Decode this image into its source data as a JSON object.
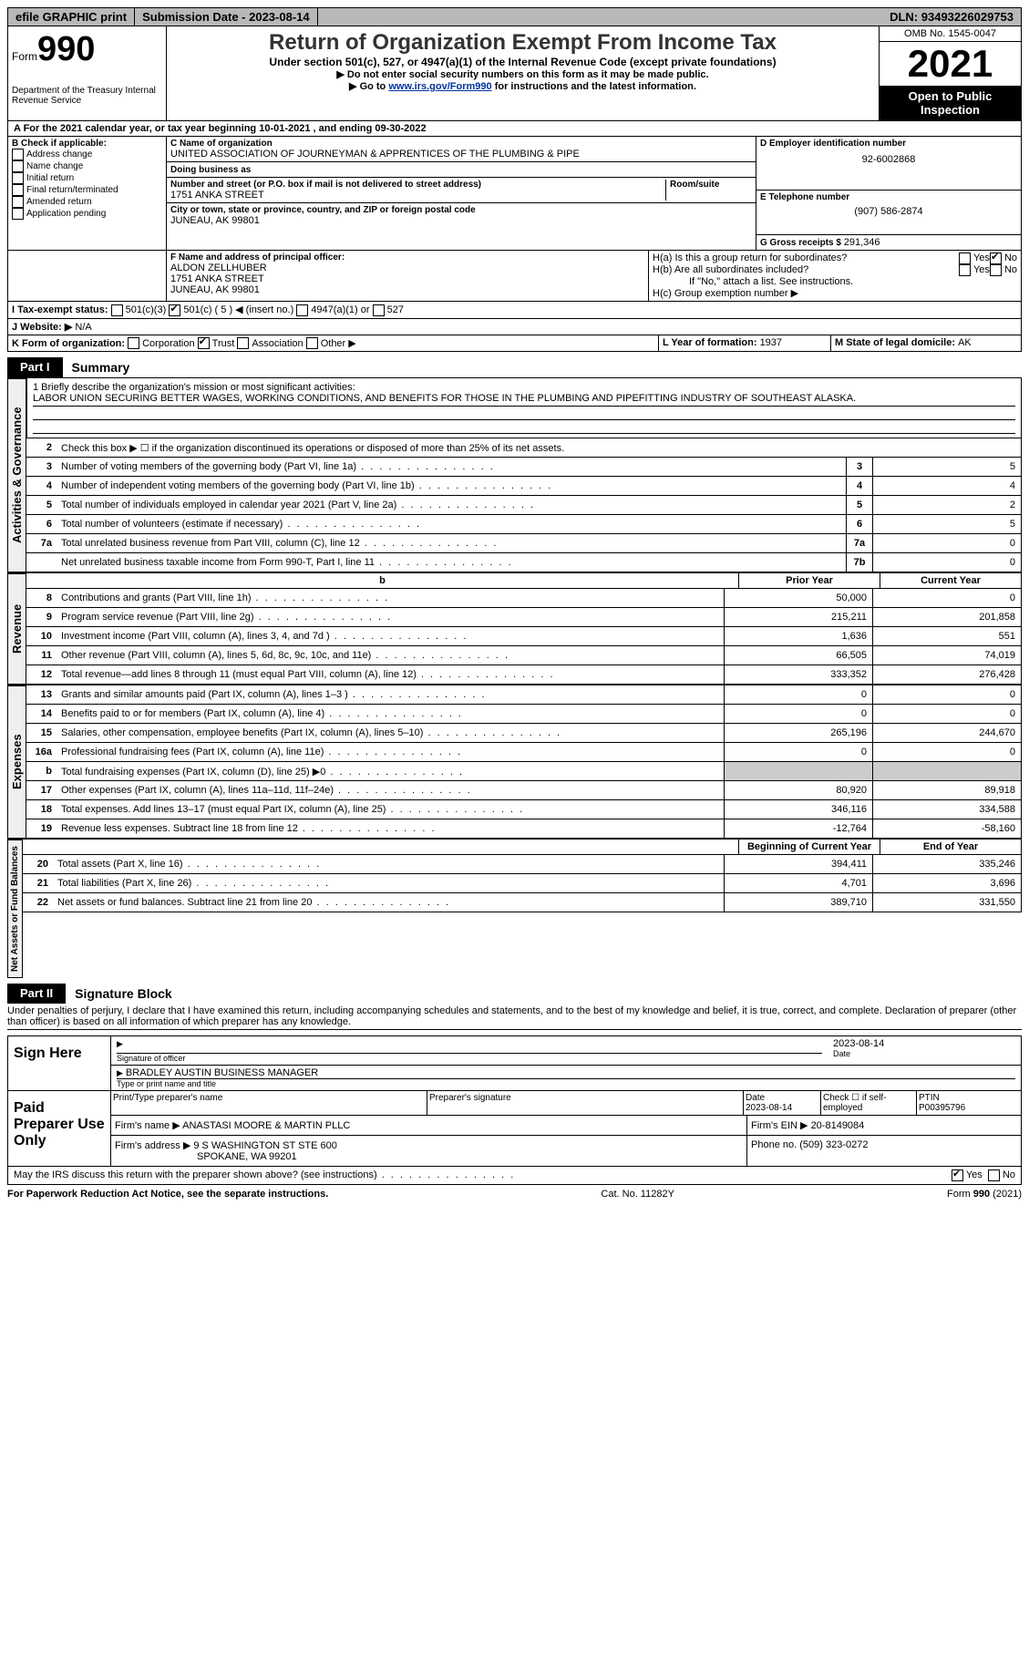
{
  "topbar": {
    "efile": "efile GRAPHIC print",
    "subdate_label": "Submission Date - ",
    "subdate": "2023-08-14",
    "dln_label": "DLN: ",
    "dln": "93493226029753"
  },
  "header": {
    "form_word": "Form",
    "form_num": "990",
    "dept": "Department of the Treasury\nInternal Revenue Service",
    "title": "Return of Organization Exempt From Income Tax",
    "subtitle": "Under section 501(c), 527, or 4947(a)(1) of the Internal Revenue Code (except private foundations)",
    "warn": "▶ Do not enter social security numbers on this form as it may be made public.",
    "goto_pre": "▶ Go to ",
    "goto_link": "www.irs.gov/Form990",
    "goto_post": " for instructions and the latest information.",
    "omb": "OMB No. 1545-0047",
    "year": "2021",
    "inspect": "Open to Public Inspection"
  },
  "period": {
    "text_a": "A For the 2021 calendar year, or tax year beginning ",
    "begin": "10-01-2021",
    "text_b": " , and ending ",
    "end": "09-30-2022"
  },
  "boxB": {
    "title": "B Check if applicable:",
    "opts": [
      "Address change",
      "Name change",
      "Initial return",
      "Final return/terminated",
      "Amended return",
      "Application pending"
    ]
  },
  "boxC": {
    "name_label": "C Name of organization",
    "name": "UNITED ASSOCIATION OF JOURNEYMAN & APPRENTICES OF THE PLUMBING & PIPE",
    "dba": "Doing business as",
    "addr_label": "Number and street (or P.O. box if mail is not delivered to street address)",
    "room": "Room/suite",
    "addr": "1751 ANKA STREET",
    "city_label": "City or town, state or province, country, and ZIP or foreign postal code",
    "city": "JUNEAU, AK  99801"
  },
  "boxD": {
    "label": "D Employer identification number",
    "val": "92-6002868"
  },
  "boxE": {
    "label": "E Telephone number",
    "val": "(907) 586-2874"
  },
  "boxG": {
    "label": "G Gross receipts $ ",
    "val": "291,346"
  },
  "boxF": {
    "label": "F  Name and address of principal officer:",
    "name": "ALDON ZELLHUBER",
    "addr1": "1751 ANKA STREET",
    "addr2": "JUNEAU, AK  99801"
  },
  "boxH": {
    "ha": "H(a)  Is this a group return for subordinates?",
    "hb": "H(b)  Are all subordinates included?",
    "hb_note": "If \"No,\" attach a list. See instructions.",
    "hc": "H(c)  Group exemption number ▶",
    "yes": "Yes",
    "no": "No"
  },
  "taxexempt": {
    "label": "I  Tax-exempt status:",
    "o1": "501(c)(3)",
    "o2": "501(c) ( 5 ) ◀ (insert no.)",
    "o3": "4947(a)(1) or",
    "o4": "527"
  },
  "website": {
    "label": "J  Website: ▶",
    "val": "N/A"
  },
  "boxK": {
    "label": "K Form of organization:",
    "o1": "Corporation",
    "o2": "Trust",
    "o3": "Association",
    "o4": "Other ▶"
  },
  "boxL": {
    "label": "L Year of formation: ",
    "val": "1937"
  },
  "boxM": {
    "label": "M State of legal domicile: ",
    "val": "AK"
  },
  "part1": {
    "tab": "Part I",
    "title": "Summary"
  },
  "summary": {
    "s1_label": "1  Briefly describe the organization's mission or most significant activities:",
    "s1_text": "LABOR UNION SECURING BETTER WAGES, WORKING CONDITIONS, AND BENEFITS FOR THOSE IN THE PLUMBING AND PIPEFITTING INDUSTRY OF SOUTHEAST ALASKA.",
    "s2": "Check this box ▶ ☐  if the organization discontinued its operations or disposed of more than 25% of its net assets.",
    "lines_gov": [
      {
        "n": "3",
        "t": "Number of voting members of the governing body (Part VI, line 1a)",
        "box": "3",
        "v": "5"
      },
      {
        "n": "4",
        "t": "Number of independent voting members of the governing body (Part VI, line 1b)",
        "box": "4",
        "v": "4"
      },
      {
        "n": "5",
        "t": "Total number of individuals employed in calendar year 2021 (Part V, line 2a)",
        "box": "5",
        "v": "2"
      },
      {
        "n": "6",
        "t": "Total number of volunteers (estimate if necessary)",
        "box": "6",
        "v": "5"
      },
      {
        "n": "7a",
        "t": "Total unrelated business revenue from Part VIII, column (C), line 12",
        "box": "7a",
        "v": "0"
      },
      {
        "n": "",
        "t": "Net unrelated business taxable income from Form 990-T, Part I, line 11",
        "box": "7b",
        "v": "0"
      }
    ],
    "col_prior": "Prior Year",
    "col_curr": "Current Year",
    "lines_rev": [
      {
        "n": "8",
        "t": "Contributions and grants (Part VIII, line 1h)",
        "p": "50,000",
        "c": "0"
      },
      {
        "n": "9",
        "t": "Program service revenue (Part VIII, line 2g)",
        "p": "215,211",
        "c": "201,858"
      },
      {
        "n": "10",
        "t": "Investment income (Part VIII, column (A), lines 3, 4, and 7d )",
        "p": "1,636",
        "c": "551"
      },
      {
        "n": "11",
        "t": "Other revenue (Part VIII, column (A), lines 5, 6d, 8c, 9c, 10c, and 11e)",
        "p": "66,505",
        "c": "74,019"
      },
      {
        "n": "12",
        "t": "Total revenue—add lines 8 through 11 (must equal Part VIII, column (A), line 12)",
        "p": "333,352",
        "c": "276,428"
      }
    ],
    "lines_exp": [
      {
        "n": "13",
        "t": "Grants and similar amounts paid (Part IX, column (A), lines 1–3 )",
        "p": "0",
        "c": "0"
      },
      {
        "n": "14",
        "t": "Benefits paid to or for members (Part IX, column (A), line 4)",
        "p": "0",
        "c": "0"
      },
      {
        "n": "15",
        "t": "Salaries, other compensation, employee benefits (Part IX, column (A), lines 5–10)",
        "p": "265,196",
        "c": "244,670"
      },
      {
        "n": "16a",
        "t": "Professional fundraising fees (Part IX, column (A), line 11e)",
        "p": "0",
        "c": "0"
      },
      {
        "n": "b",
        "t": "Total fundraising expenses (Part IX, column (D), line 25) ▶0",
        "p": "SHADE",
        "c": "SHADE"
      },
      {
        "n": "17",
        "t": "Other expenses (Part IX, column (A), lines 11a–11d, 11f–24e)",
        "p": "80,920",
        "c": "89,918"
      },
      {
        "n": "18",
        "t": "Total expenses. Add lines 13–17 (must equal Part IX, column (A), line 25)",
        "p": "346,116",
        "c": "334,588"
      },
      {
        "n": "19",
        "t": "Revenue less expenses. Subtract line 18 from line 12",
        "p": "-12,764",
        "c": "-58,160"
      }
    ],
    "col_begin": "Beginning of Current Year",
    "col_end": "End of Year",
    "lines_net": [
      {
        "n": "20",
        "t": "Total assets (Part X, line 16)",
        "p": "394,411",
        "c": "335,246"
      },
      {
        "n": "21",
        "t": "Total liabilities (Part X, line 26)",
        "p": "4,701",
        "c": "3,696"
      },
      {
        "n": "22",
        "t": "Net assets or fund balances. Subtract line 21 from line 20",
        "p": "389,710",
        "c": "331,550"
      }
    ],
    "vlabels": [
      "Activities & Governance",
      "Revenue",
      "Expenses",
      "Net Assets or\nFund Balances"
    ]
  },
  "part2": {
    "tab": "Part II",
    "title": "Signature Block"
  },
  "perjury": "Under penalties of perjury, I declare that I have examined this return, including accompanying schedules and statements, and to the best of my knowledge and belief, it is true, correct, and complete. Declaration of preparer (other than officer) is based on all information of which preparer has any knowledge.",
  "sign": {
    "here": "Sign Here",
    "sig_label": "Signature of officer",
    "date_label": "Date",
    "date": "2023-08-14",
    "name": "BRADLEY AUSTIN  BUSINESS MANAGER",
    "name_label": "Type or print name and title"
  },
  "prep": {
    "label": "Paid Preparer Use Only",
    "r1": {
      "c1": "Print/Type preparer's name",
      "c2": "Preparer's signature",
      "c3": "Date\n2023-08-14",
      "c4": "Check ☐ if self-employed",
      "c5": "PTIN\nP00395796"
    },
    "r2": {
      "a": "Firm's name    ▶ ",
      "b": "ANASTASI MOORE & MARTIN PLLC",
      "c": "Firm's EIN ▶ ",
      "d": "20-8149084"
    },
    "r3": {
      "a": "Firm's address ▶ ",
      "b": "9 S WASHINGTON ST STE 600",
      "c": "Phone no. ",
      "d": "(509) 323-0272"
    },
    "r3b": "SPOKANE, WA  99201"
  },
  "discuss": {
    "q": "May the IRS discuss this return with the preparer shown above? (see instructions)",
    "yes": "Yes",
    "no": "No"
  },
  "footer": {
    "left": "For Paperwork Reduction Act Notice, see the separate instructions.",
    "mid": "Cat. No. 11282Y",
    "right": "Form 990 (2021)"
  }
}
